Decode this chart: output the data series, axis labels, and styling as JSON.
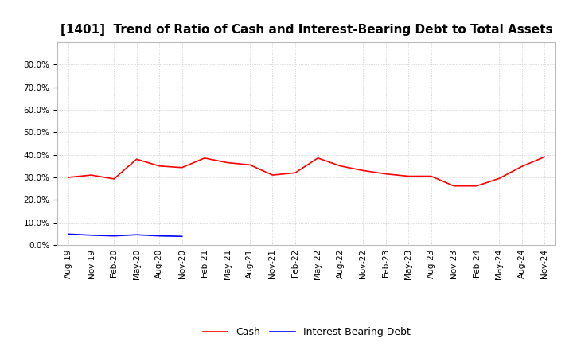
{
  "title": "[1401]  Trend of Ratio of Cash and Interest-Bearing Debt to Total Assets",
  "x_labels": [
    "Aug-19",
    "Nov-19",
    "Feb-20",
    "May-20",
    "Aug-20",
    "Nov-20",
    "Feb-21",
    "May-21",
    "Aug-21",
    "Nov-21",
    "Feb-22",
    "May-22",
    "Aug-22",
    "Nov-22",
    "Feb-23",
    "May-23",
    "Aug-23",
    "Nov-23",
    "Feb-24",
    "May-24",
    "Aug-24",
    "Nov-24"
  ],
  "cash": [
    0.3,
    0.31,
    0.293,
    0.38,
    0.35,
    0.343,
    0.385,
    0.365,
    0.355,
    0.31,
    0.32,
    0.385,
    0.35,
    0.33,
    0.315,
    0.305,
    0.305,
    0.262,
    0.262,
    0.295,
    0.348,
    0.39
  ],
  "interest_bearing_debt": [
    0.048,
    0.043,
    0.04,
    0.045,
    0.04,
    0.038,
    null,
    null,
    null,
    null,
    null,
    null,
    null,
    null,
    null,
    null,
    null,
    null,
    null,
    null,
    null,
    null
  ],
  "cash_color": "#ff0000",
  "debt_color": "#0000ff",
  "ylim": [
    0.0,
    0.9
  ],
  "yticks": [
    0.0,
    0.1,
    0.2,
    0.3,
    0.4,
    0.5,
    0.6,
    0.7,
    0.8
  ],
  "background_color": "#ffffff",
  "grid_color": "#aaaaaa",
  "legend_cash": "Cash",
  "legend_debt": "Interest-Bearing Debt",
  "title_fontsize": 11,
  "tick_fontsize": 7.5,
  "legend_fontsize": 9,
  "linewidth": 1.2
}
